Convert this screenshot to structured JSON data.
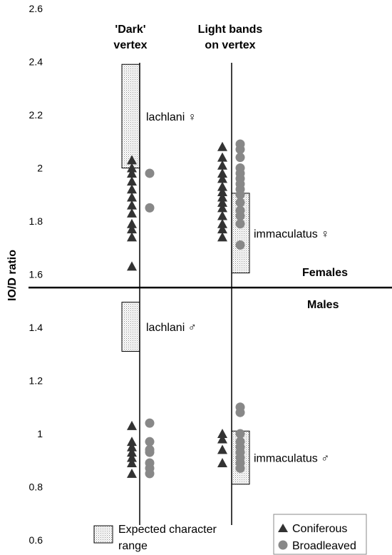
{
  "chart_data": {
    "type": "scatter",
    "title": "",
    "xlabel": "",
    "ylabel": "IO/D ratio",
    "ylim": [
      0.6,
      2.6
    ],
    "yticks": [
      "0.6",
      "0.8",
      "1",
      "1.2",
      "1.4",
      "1.6",
      "1.8",
      "2",
      "2.2",
      "2.4",
      "2.6"
    ],
    "grid": false,
    "categories": [
      {
        "line1": "'Dark'",
        "line2": "vertex"
      },
      {
        "line1": "Light bands",
        "line2": "on vertex"
      }
    ],
    "divider": {
      "value": 1.55,
      "label_above": "Females",
      "label_below": "Males"
    },
    "expected_ranges": [
      {
        "category": 0,
        "low": 2.0,
        "high": 2.39,
        "label": "lachlani ♀"
      },
      {
        "category": 0,
        "low": 1.31,
        "high": 1.495,
        "label": "lachlani ♂"
      },
      {
        "category": 1,
        "low": 1.605,
        "high": 1.905,
        "label": "immaculatus ♀"
      },
      {
        "category": 1,
        "low": 0.81,
        "high": 1.01,
        "label": "immaculatus ♂"
      }
    ],
    "series": [
      {
        "name": "Coniferous",
        "marker": "triangle",
        "color": "#333333",
        "points": [
          {
            "category": 0,
            "values": [
              2.03,
              2.0,
              1.98,
              1.95,
              1.92,
              1.89,
              1.86,
              1.83,
              1.79,
              1.77,
              1.74,
              1.63,
              1.03,
              0.97,
              0.95,
              0.93,
              0.91,
              0.89,
              0.85
            ]
          },
          {
            "category": 1,
            "values": [
              2.08,
              2.04,
              2.01,
              1.98,
              1.96,
              1.93,
              1.91,
              1.89,
              1.87,
              1.85,
              1.82,
              1.79,
              1.77,
              1.74,
              1.0,
              0.98,
              0.94,
              0.89
            ]
          }
        ]
      },
      {
        "name": "Broadleaved",
        "marker": "circle",
        "color": "#888888",
        "points": [
          {
            "category": 0,
            "values": [
              1.98,
              1.85,
              1.04,
              0.97,
              0.94,
              0.93,
              0.89,
              0.87,
              0.85
            ]
          },
          {
            "category": 1,
            "values": [
              2.09,
              2.07,
              2.04,
              2.0,
              1.98,
              1.96,
              1.94,
              1.92,
              1.9,
              1.87,
              1.84,
              1.82,
              1.79,
              1.71,
              1.1,
              1.08,
              1.0,
              0.97,
              0.95,
              0.93,
              0.91,
              0.89,
              0.87
            ]
          }
        ]
      }
    ],
    "legend": {
      "range_label_line1": "Expected character",
      "range_label_line2": "range",
      "coniferous": "Coniferous",
      "broadleaved": "Broadleaved"
    }
  }
}
